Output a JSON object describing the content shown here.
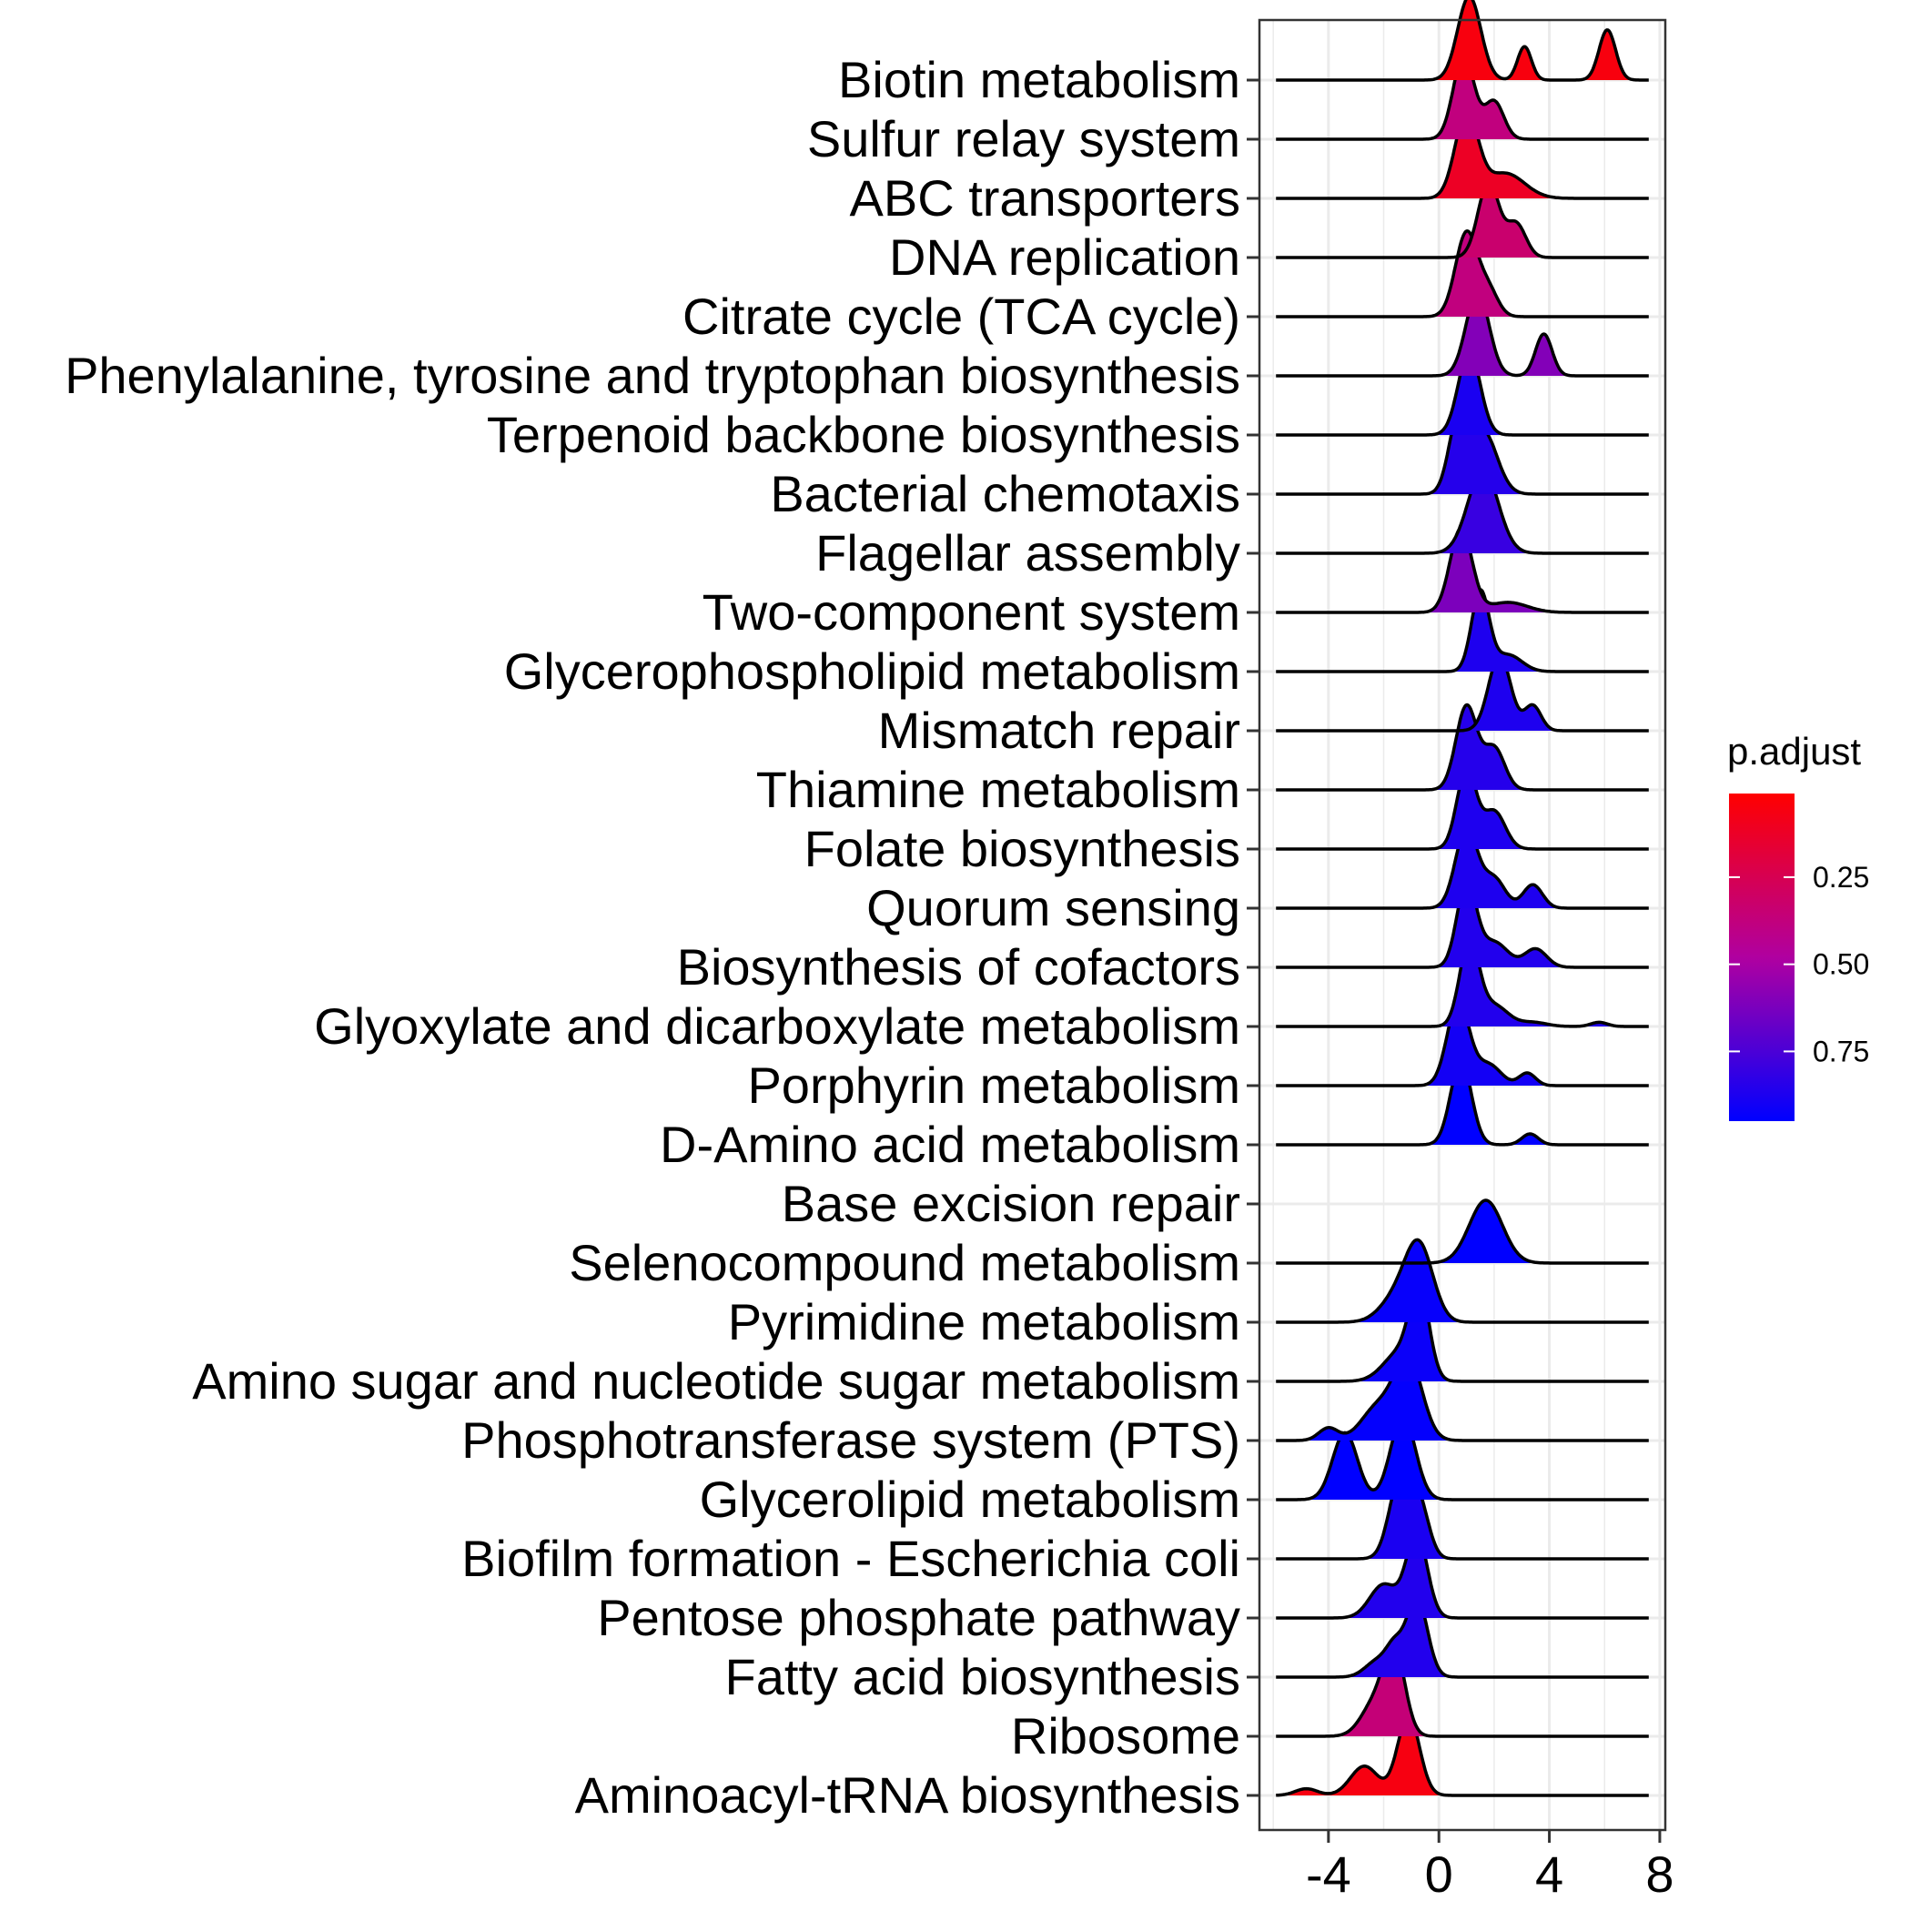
{
  "chart_data": {
    "type": "ridgeline",
    "x_ticks": [
      -4,
      0,
      4,
      8
    ],
    "xlim": [
      -6.5,
      8.2
    ],
    "legend": {
      "title": "p.adjust",
      "ticks": [
        "0.25",
        "0.50",
        "0.75"
      ],
      "tick_values": [
        0.25,
        0.5,
        0.75
      ],
      "range": [
        0.01,
        0.95
      ],
      "low_color": "#0000FF",
      "high_color": "#FF0000",
      "placement": "right"
    },
    "pathways": [
      {
        "name": "Biotin metabolism",
        "p_adjust": 0.05,
        "peaks": [
          [
            1.1,
            0.42,
            1.0
          ],
          [
            3.1,
            0.25,
            0.4
          ],
          [
            6.1,
            0.3,
            0.6
          ]
        ]
      },
      {
        "name": "Sulfur relay system",
        "p_adjust": 0.38,
        "peaks": [
          [
            0.9,
            0.38,
            1.0
          ],
          [
            2.0,
            0.35,
            0.45
          ]
        ]
      },
      {
        "name": "ABC transporters",
        "p_adjust": 0.12,
        "peaks": [
          [
            1.0,
            0.42,
            1.0
          ],
          [
            2.4,
            0.7,
            0.3
          ]
        ]
      },
      {
        "name": "DNA replication",
        "p_adjust": 0.33,
        "peaks": [
          [
            1.8,
            0.38,
            0.9
          ],
          [
            2.8,
            0.35,
            0.4
          ]
        ]
      },
      {
        "name": "Citrate cycle (TCA cycle)",
        "p_adjust": 0.38,
        "peaks": [
          [
            1.0,
            0.4,
            1.0
          ],
          [
            1.8,
            0.35,
            0.3
          ]
        ]
      },
      {
        "name": "Phenylalanine, tyrosine and tryptophan biosynthesis",
        "p_adjust": 0.6,
        "peaks": [
          [
            1.4,
            0.42,
            1.0
          ],
          [
            3.8,
            0.3,
            0.5
          ]
        ]
      },
      {
        "name": "Terpenoid backbone biosynthesis",
        "p_adjust": 0.88,
        "peaks": [
          [
            1.1,
            0.4,
            1.0
          ]
        ]
      },
      {
        "name": "Bacterial chemotaxis",
        "p_adjust": 0.85,
        "peaks": [
          [
            0.7,
            0.35,
            0.85
          ],
          [
            1.6,
            0.5,
            0.75
          ]
        ]
      },
      {
        "name": "Flagellar assembly",
        "p_adjust": 0.8,
        "peaks": [
          [
            1.6,
            0.55,
            1.0
          ]
        ]
      },
      {
        "name": "Two-component system",
        "p_adjust": 0.62,
        "peaks": [
          [
            0.8,
            0.4,
            1.0
          ],
          [
            2.5,
            0.7,
            0.12
          ]
        ]
      },
      {
        "name": "Glycerophospholipid metabolism",
        "p_adjust": 0.87,
        "peaks": [
          [
            1.5,
            0.32,
            0.95
          ],
          [
            2.5,
            0.5,
            0.2
          ]
        ]
      },
      {
        "name": "Mismatch repair",
        "p_adjust": 0.87,
        "peaks": [
          [
            2.2,
            0.4,
            0.9
          ],
          [
            3.4,
            0.3,
            0.3
          ]
        ]
      },
      {
        "name": "Thiamine metabolism",
        "p_adjust": 0.85,
        "peaks": [
          [
            1.0,
            0.38,
            1.0
          ],
          [
            2.0,
            0.38,
            0.5
          ]
        ]
      },
      {
        "name": "Folate biosynthesis",
        "p_adjust": 0.87,
        "peaks": [
          [
            1.0,
            0.35,
            0.95
          ],
          [
            2.0,
            0.4,
            0.45
          ]
        ]
      },
      {
        "name": "Quorum sensing",
        "p_adjust": 0.87,
        "peaks": [
          [
            1.0,
            0.4,
            0.95
          ],
          [
            2.0,
            0.4,
            0.35
          ],
          [
            3.4,
            0.35,
            0.28
          ]
        ]
      },
      {
        "name": "Biosynthesis of cofactors",
        "p_adjust": 0.86,
        "peaks": [
          [
            1.0,
            0.35,
            1.0
          ],
          [
            2.0,
            0.5,
            0.3
          ],
          [
            3.5,
            0.4,
            0.22
          ]
        ]
      },
      {
        "name": "Glyoxylate and dicarboxylate metabolism",
        "p_adjust": 0.86,
        "peaks": [
          [
            1.1,
            0.35,
            1.0
          ],
          [
            2.0,
            0.5,
            0.25
          ],
          [
            3.4,
            0.5,
            0.05
          ],
          [
            5.8,
            0.3,
            0.05
          ]
        ]
      },
      {
        "name": "Porphyrin metabolism",
        "p_adjust": 0.9,
        "peaks": [
          [
            0.7,
            0.4,
            1.0
          ],
          [
            1.8,
            0.45,
            0.25
          ],
          [
            3.2,
            0.3,
            0.15
          ]
        ]
      },
      {
        "name": "D-Amino acid metabolism",
        "p_adjust": 0.95,
        "peaks": [
          [
            0.8,
            0.38,
            1.0
          ],
          [
            3.3,
            0.3,
            0.13
          ]
        ]
      },
      {
        "name": "Base excision repair",
        "p_adjust": 0.95,
        "peaks": []
      },
      {
        "name": "Selenocompound metabolism",
        "p_adjust": 0.95,
        "peaks": [
          [
            1.7,
            0.6,
            0.75
          ]
        ]
      },
      {
        "name": "Pyrimidine metabolism",
        "p_adjust": 0.93,
        "peaks": [
          [
            -0.7,
            0.5,
            0.85
          ],
          [
            -1.5,
            0.6,
            0.3
          ]
        ]
      },
      {
        "name": "Amino sugar and nucleotide sugar metabolism",
        "p_adjust": 0.92,
        "peaks": [
          [
            -0.7,
            0.35,
            1.0
          ],
          [
            -1.4,
            0.6,
            0.35
          ]
        ]
      },
      {
        "name": "Phosphotransferase system (PTS)",
        "p_adjust": 0.94,
        "peaks": [
          [
            -1.1,
            0.5,
            0.95
          ],
          [
            -4.0,
            0.35,
            0.15
          ],
          [
            -2.2,
            0.6,
            0.4
          ]
        ]
      },
      {
        "name": "Glycerolipid metabolism",
        "p_adjust": 0.95,
        "peaks": [
          [
            -1.3,
            0.45,
            1.0
          ],
          [
            -3.4,
            0.45,
            0.8
          ]
        ]
      },
      {
        "name": "Biofilm formation - Escherichia coli",
        "p_adjust": 0.88,
        "peaks": [
          [
            -1.4,
            0.4,
            0.95
          ],
          [
            -0.7,
            0.35,
            0.6
          ]
        ]
      },
      {
        "name": "Pentose phosphate pathway",
        "p_adjust": 0.86,
        "peaks": [
          [
            -0.8,
            0.38,
            1.0
          ],
          [
            -2.0,
            0.5,
            0.4
          ]
        ]
      },
      {
        "name": "Fatty acid biosynthesis",
        "p_adjust": 0.86,
        "peaks": [
          [
            -0.8,
            0.38,
            0.95
          ],
          [
            -2.2,
            0.45,
            0.2
          ],
          [
            -1.6,
            0.3,
            0.3
          ]
        ]
      },
      {
        "name": "Ribosome",
        "p_adjust": 0.36,
        "peaks": [
          [
            -1.6,
            0.38,
            0.95
          ],
          [
            -2.3,
            0.5,
            0.4
          ]
        ]
      },
      {
        "name": "Aminoacyl-tRNA biosynthesis",
        "p_adjust": 0.06,
        "peaks": [
          [
            -1.1,
            0.4,
            0.95
          ],
          [
            -2.7,
            0.5,
            0.35
          ],
          [
            -4.8,
            0.4,
            0.08
          ]
        ]
      }
    ]
  }
}
